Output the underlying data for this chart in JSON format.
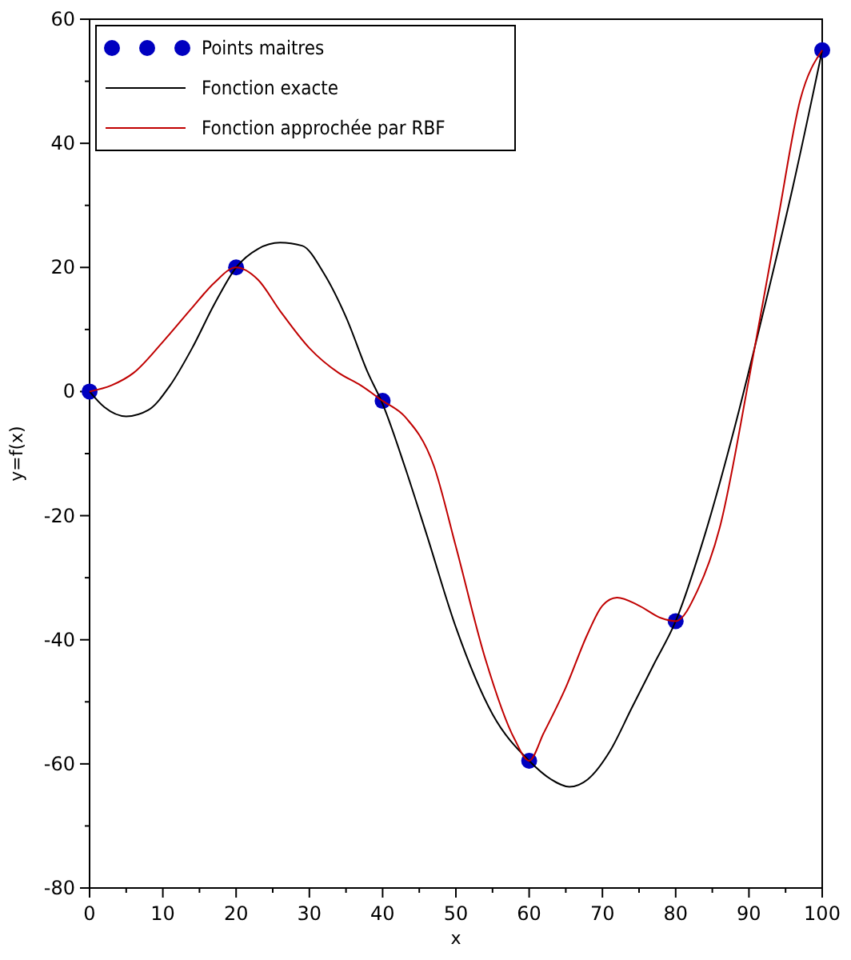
{
  "chart_data": {
    "type": "line",
    "xlabel": "x",
    "ylabel": "y=f(x)",
    "xlim": [
      0,
      100
    ],
    "ylim": [
      -80,
      60
    ],
    "xticks": [
      0,
      {
        "value": 5,
        "label": null
      },
      10,
      {
        "value": 15,
        "label": null
      },
      20,
      {
        "value": 25,
        "label": null
      },
      30,
      {
        "value": 35,
        "label": null
      },
      40,
      {
        "value": 45,
        "label": null
      },
      50,
      {
        "value": 55,
        "label": null
      },
      60,
      {
        "value": 65,
        "label": null
      },
      70,
      {
        "value": 75,
        "label": null
      },
      80,
      {
        "value": 85,
        "label": null
      },
      90,
      {
        "value": 95,
        "label": null
      },
      100
    ],
    "yticks": [
      -80,
      {
        "value": -70,
        "label": null
      },
      -60,
      {
        "value": -50,
        "label": null
      },
      -40,
      {
        "value": -30,
        "label": null
      },
      -20,
      {
        "value": -10,
        "label": null
      },
      0,
      {
        "value": 10,
        "label": null
      },
      20,
      {
        "value": 30,
        "label": null
      },
      40,
      {
        "value": 50,
        "label": null
      },
      60
    ],
    "grid": false,
    "legend": "top left",
    "series": [
      {
        "name": "Points maitres",
        "type": "scatter",
        "marker": "circle",
        "color": "#0000c0",
        "x": [
          0,
          20,
          40,
          60,
          80,
          100
        ],
        "values": [
          0,
          20,
          -1.5,
          -59.5,
          -37,
          55
        ]
      },
      {
        "name": "Fonction exacte",
        "marker": "none",
        "line_style": "solid",
        "color": "#000000",
        "x": [
          0,
          2,
          5,
          8,
          11,
          14,
          17,
          20,
          23,
          26,
          29,
          32,
          35,
          38,
          40,
          43,
          46,
          50,
          55,
          60,
          63,
          65.5,
          68,
          71,
          74,
          77,
          80,
          84,
          88,
          92,
          96,
          100
        ],
        "values": [
          0,
          -2.5,
          -4,
          -3,
          1,
          7,
          14,
          20,
          23,
          24,
          23.5,
          19,
          12,
          3,
          -2,
          -12,
          -23,
          -38,
          -52,
          -59.5,
          -62.5,
          -63.7,
          -62.5,
          -58,
          -51,
          -44,
          -37,
          -23,
          -6,
          13,
          33,
          55
        ]
      },
      {
        "name": "Fonction approchée par RBF",
        "marker": "none",
        "line_style": "solid",
        "color": "#c00000",
        "x": [
          0,
          3,
          6,
          10,
          14,
          17,
          20,
          23,
          26,
          30,
          34,
          37,
          40,
          43,
          47,
          50,
          54,
          58,
          60,
          62,
          65,
          68,
          70,
          72,
          75,
          78,
          80,
          83,
          86,
          90,
          94,
          97,
          100
        ],
        "values": [
          0,
          1,
          3,
          8,
          13.5,
          17.5,
          20,
          18,
          13,
          7,
          3,
          1,
          -1.5,
          -4,
          -12,
          -25,
          -43,
          -56,
          -59.5,
          -55,
          -47.7,
          -39,
          -34.5,
          -33.2,
          -34.5,
          -36.5,
          -37,
          -32,
          -22,
          2,
          28,
          47,
          55
        ]
      }
    ]
  }
}
